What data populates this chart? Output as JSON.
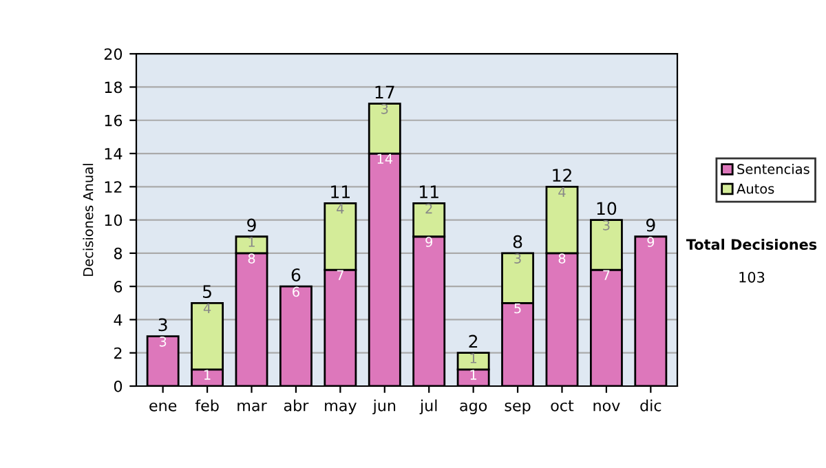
{
  "chart_data": {
    "type": "bar",
    "stacked": true,
    "ylabel": "Decisiones Anual",
    "categories": [
      "ene",
      "feb",
      "mar",
      "abr",
      "may",
      "jun",
      "jul",
      "ago",
      "sep",
      "oct",
      "nov",
      "dic"
    ],
    "series": [
      {
        "name": "Sentencias",
        "color": "#dd77bb",
        "values": [
          3,
          1,
          8,
          6,
          7,
          14,
          9,
          1,
          5,
          8,
          7,
          9
        ],
        "value_labels": [
          "3",
          "1",
          "8",
          "6",
          "7",
          "14",
          "9",
          "1",
          "5",
          "8",
          "7",
          "9"
        ]
      },
      {
        "name": "Autos",
        "color": "#d4ec99",
        "values": [
          null,
          4,
          1,
          null,
          4,
          3,
          2,
          1,
          3,
          4,
          3,
          null
        ],
        "value_labels": [
          null,
          "4",
          "1",
          null,
          "4",
          "3",
          "2",
          "1",
          "3",
          "4",
          "3",
          null
        ]
      }
    ],
    "totals": [
      "3",
      "5",
      "9",
      "6",
      "11",
      "17",
      "11",
      "2",
      "8",
      "12",
      "10",
      "9"
    ],
    "ylim": [
      0,
      20
    ],
    "yticks": [
      0,
      2,
      4,
      6,
      8,
      10,
      12,
      14,
      16,
      18,
      20
    ],
    "grid": "y",
    "legend": "right",
    "annotations": [
      "Total Decisiones",
      "103"
    ]
  }
}
